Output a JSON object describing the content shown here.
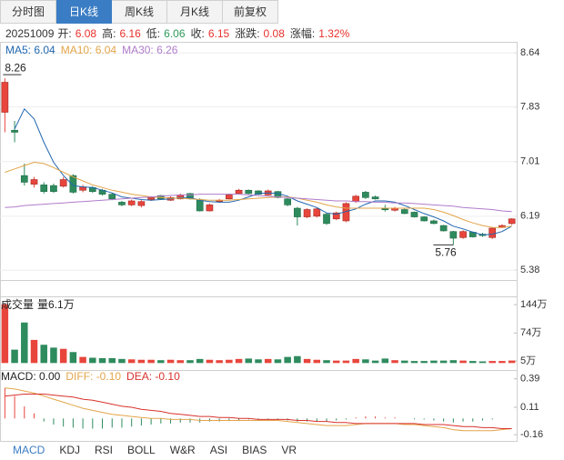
{
  "tabs": [
    "分时图",
    "日K线",
    "周K线",
    "月K线",
    "前复权"
  ],
  "active_tab": 1,
  "quote": {
    "date": "20251009",
    "items": [
      {
        "label": "开:",
        "value": "6.08",
        "color": "#e8312a"
      },
      {
        "label": "高:",
        "value": "6.16",
        "color": "#e8312a"
      },
      {
        "label": "低:",
        "value": "6.06",
        "color": "#2e9a5a"
      },
      {
        "label": "收:",
        "value": "6.15",
        "color": "#e8312a"
      },
      {
        "label": "涨跌:",
        "value": "0.08",
        "color": "#e8312a"
      },
      {
        "label": "涨幅:",
        "value": "1.32%",
        "color": "#e8312a"
      }
    ]
  },
  "chart_data": [
    {
      "type": "candlestick",
      "up_color": "#e8453c",
      "down_color": "#2e8b5e",
      "ylim": [
        5.26,
        8.78
      ],
      "yticks": [
        8.64,
        7.83,
        7.01,
        6.19,
        5.38
      ],
      "grid": true,
      "open": [
        7.75,
        7.48,
        6.8,
        6.67,
        6.66,
        6.65,
        6.64,
        6.8,
        6.58,
        6.62,
        6.58,
        6.52,
        6.4,
        6.36,
        6.35,
        6.44,
        6.5,
        6.43,
        6.45,
        6.53,
        6.44,
        6.27,
        6.41,
        6.45,
        6.53,
        6.58,
        6.57,
        6.51,
        6.56,
        6.45,
        6.31,
        6.18,
        6.19,
        6.22,
        6.15,
        6.12,
        6.41,
        6.55,
        6.48,
        6.3,
        6.28,
        6.29,
        6.25,
        6.18,
        6.12,
        6.05,
        5.96,
        5.87,
        5.95,
        5.92,
        5.87,
        6.02,
        6.08
      ],
      "high": [
        8.26,
        7.62,
        6.98,
        6.78,
        6.7,
        6.68,
        6.78,
        6.82,
        6.66,
        6.64,
        6.6,
        6.54,
        6.42,
        6.44,
        6.43,
        6.49,
        6.51,
        6.49,
        6.53,
        6.54,
        6.46,
        6.38,
        6.45,
        6.53,
        6.6,
        6.59,
        6.58,
        6.59,
        6.57,
        6.46,
        6.33,
        6.31,
        6.32,
        6.24,
        6.26,
        6.4,
        6.51,
        6.57,
        6.5,
        6.36,
        6.33,
        6.31,
        6.26,
        6.19,
        6.14,
        6.06,
        5.97,
        5.98,
        5.96,
        5.94,
        6.03,
        6.07,
        6.16
      ],
      "low": [
        7.45,
        7.3,
        6.65,
        6.62,
        6.53,
        6.54,
        6.62,
        6.53,
        6.55,
        6.54,
        6.5,
        6.43,
        6.34,
        6.34,
        6.32,
        6.42,
        6.44,
        6.42,
        6.44,
        6.44,
        6.26,
        6.26,
        6.39,
        6.44,
        6.52,
        6.52,
        6.51,
        6.5,
        6.46,
        6.34,
        6.05,
        6.16,
        6.17,
        6.06,
        6.13,
        6.1,
        6.39,
        6.45,
        6.44,
        6.26,
        6.26,
        6.22,
        6.17,
        6.11,
        6.07,
        5.96,
        5.76,
        5.85,
        5.87,
        5.88,
        5.85,
        6.01,
        6.06
      ],
      "close": [
        8.2,
        7.45,
        6.7,
        6.74,
        6.56,
        6.56,
        6.74,
        6.55,
        6.63,
        6.56,
        6.52,
        6.45,
        6.36,
        6.42,
        6.41,
        6.47,
        6.45,
        6.47,
        6.51,
        6.45,
        6.27,
        6.36,
        6.43,
        6.51,
        6.58,
        6.53,
        6.52,
        6.57,
        6.47,
        6.36,
        6.18,
        6.29,
        6.3,
        6.08,
        6.24,
        6.38,
        6.49,
        6.47,
        6.45,
        6.29,
        6.31,
        6.23,
        6.18,
        6.12,
        6.08,
        5.97,
        5.86,
        5.96,
        5.88,
        5.9,
        6.01,
        6.05,
        6.15
      ],
      "series": [
        {
          "name": "MA5: 6.04",
          "color": "#2267b0",
          "values": [
            null,
            7.5,
            7.8,
            7.65,
            7.3,
            7.0,
            6.8,
            6.65,
            6.63,
            6.62,
            6.58,
            6.54,
            6.48,
            6.46,
            6.44,
            6.43,
            6.44,
            6.45,
            6.47,
            6.47,
            6.43,
            6.41,
            6.4,
            6.4,
            6.43,
            6.48,
            6.53,
            6.54,
            6.53,
            6.49,
            6.42,
            6.37,
            6.32,
            6.24,
            6.22,
            6.26,
            6.3,
            6.37,
            6.42,
            6.42,
            6.4,
            6.35,
            6.29,
            6.23,
            6.18,
            6.12,
            6.04,
            6.0,
            5.95,
            5.91,
            5.92,
            5.96,
            6.04
          ]
        },
        {
          "name": "MA10: 6.04",
          "color": "#e3a54a",
          "values": [
            6.85,
            6.9,
            6.95,
            7.0,
            6.98,
            6.92,
            6.85,
            6.78,
            6.72,
            6.66,
            6.62,
            6.58,
            6.55,
            6.52,
            6.5,
            6.48,
            6.47,
            6.46,
            6.46,
            6.45,
            6.44,
            6.43,
            6.43,
            6.43,
            6.44,
            6.45,
            6.46,
            6.47,
            6.48,
            6.48,
            6.46,
            6.43,
            6.4,
            6.36,
            6.33,
            6.31,
            6.31,
            6.31,
            6.31,
            6.31,
            6.31,
            6.31,
            6.31,
            6.31,
            6.29,
            6.25,
            6.2,
            6.14,
            6.09,
            6.05,
            6.02,
            6.02,
            6.04
          ]
        },
        {
          "name": "MA30: 6.26",
          "color": "#b07ccb",
          "values": [
            6.32,
            6.33,
            6.35,
            6.36,
            6.37,
            6.38,
            6.39,
            6.4,
            6.41,
            6.42,
            6.43,
            6.44,
            6.45,
            6.46,
            6.47,
            6.48,
            6.49,
            6.5,
            6.51,
            6.51,
            6.52,
            6.52,
            6.52,
            6.52,
            6.52,
            6.51,
            6.5,
            6.49,
            6.48,
            6.47,
            6.46,
            6.45,
            6.44,
            6.43,
            6.42,
            6.42,
            6.41,
            6.41,
            6.4,
            6.4,
            6.39,
            6.39,
            6.38,
            6.37,
            6.36,
            6.35,
            6.34,
            6.32,
            6.31,
            6.3,
            6.29,
            6.27,
            6.26
          ]
        }
      ]
    },
    {
      "type": "bar",
      "title": "成交量",
      "ylim": [
        -15,
        160
      ],
      "yticks": [
        {
          "value": 144,
          "label": "144万"
        },
        {
          "value": 74,
          "label": "74万"
        },
        {
          "value": 5,
          "label": "5万"
        }
      ],
      "series": [
        {
          "name": "量6.1万",
          "color": "#222222",
          "values": [
            145,
            33,
            100,
            57,
            45,
            38,
            35,
            27,
            15,
            13,
            12,
            12,
            10,
            9,
            8,
            8,
            7,
            8,
            7,
            7,
            10,
            8,
            7,
            8,
            10,
            11,
            9,
            10,
            9,
            15,
            17,
            10,
            8,
            7,
            6,
            6,
            10,
            9,
            6,
            11,
            7,
            6,
            5,
            5,
            6,
            6,
            7,
            6,
            5,
            4,
            5,
            5,
            6.1
          ]
        }
      ]
    },
    {
      "type": "macd",
      "ylim": [
        -0.23,
        0.45
      ],
      "yticks": [
        0.39,
        0.11,
        -0.16
      ],
      "up_color": "#e8453c",
      "down_color": "#2e8b5e",
      "series": [
        {
          "name": "MACD: 0.00",
          "color": "#222222",
          "kind": "bar",
          "values": [
            0.3,
            0.22,
            0.12,
            0.05,
            -0.03,
            -0.06,
            -0.08,
            -0.09,
            -0.1,
            -0.1,
            -0.1,
            -0.09,
            -0.09,
            -0.08,
            -0.07,
            -0.06,
            -0.05,
            -0.05,
            -0.04,
            -0.04,
            -0.04,
            -0.03,
            -0.03,
            -0.02,
            -0.02,
            -0.01,
            -0.01,
            -0.01,
            -0.01,
            -0.02,
            -0.03,
            -0.03,
            -0.03,
            -0.03,
            -0.02,
            -0.01,
            0.01,
            0.02,
            0.02,
            0.01,
            0.01,
            0.0,
            -0.01,
            -0.01,
            -0.02,
            -0.03,
            -0.04,
            -0.03,
            -0.03,
            -0.02,
            -0.01,
            0.0,
            0.0
          ]
        },
        {
          "name": "DIFF: -0.10",
          "color": "#e3a54a",
          "kind": "line",
          "values": [
            0.3,
            0.29,
            0.27,
            0.25,
            0.22,
            0.19,
            0.16,
            0.13,
            0.1,
            0.08,
            0.06,
            0.04,
            0.03,
            0.02,
            0.01,
            0.0,
            0.0,
            -0.01,
            -0.01,
            -0.01,
            -0.02,
            -0.02,
            -0.02,
            -0.02,
            -0.02,
            -0.02,
            -0.02,
            -0.02,
            -0.02,
            -0.03,
            -0.04,
            -0.05,
            -0.06,
            -0.07,
            -0.07,
            -0.07,
            -0.06,
            -0.05,
            -0.05,
            -0.05,
            -0.05,
            -0.06,
            -0.06,
            -0.07,
            -0.08,
            -0.09,
            -0.11,
            -0.12,
            -0.12,
            -0.12,
            -0.12,
            -0.11,
            -0.1
          ]
        },
        {
          "name": "DEA: -0.10",
          "color": "#d8322c",
          "kind": "line",
          "values": [
            0.22,
            0.23,
            0.24,
            0.24,
            0.24,
            0.23,
            0.22,
            0.21,
            0.19,
            0.18,
            0.16,
            0.14,
            0.12,
            0.11,
            0.09,
            0.08,
            0.07,
            0.05,
            0.04,
            0.03,
            0.02,
            0.02,
            0.01,
            0.01,
            0.0,
            0.0,
            -0.01,
            -0.01,
            -0.01,
            -0.01,
            -0.02,
            -0.02,
            -0.03,
            -0.03,
            -0.04,
            -0.04,
            -0.05,
            -0.05,
            -0.05,
            -0.05,
            -0.05,
            -0.05,
            -0.05,
            -0.06,
            -0.06,
            -0.06,
            -0.07,
            -0.08,
            -0.08,
            -0.09,
            -0.09,
            -0.1,
            -0.1
          ]
        }
      ]
    }
  ],
  "indicator_tabs": [
    "MACD",
    "KDJ",
    "RSI",
    "BOLL",
    "W&R",
    "ASI",
    "BIAS",
    "VR"
  ],
  "active_indicator": 0
}
